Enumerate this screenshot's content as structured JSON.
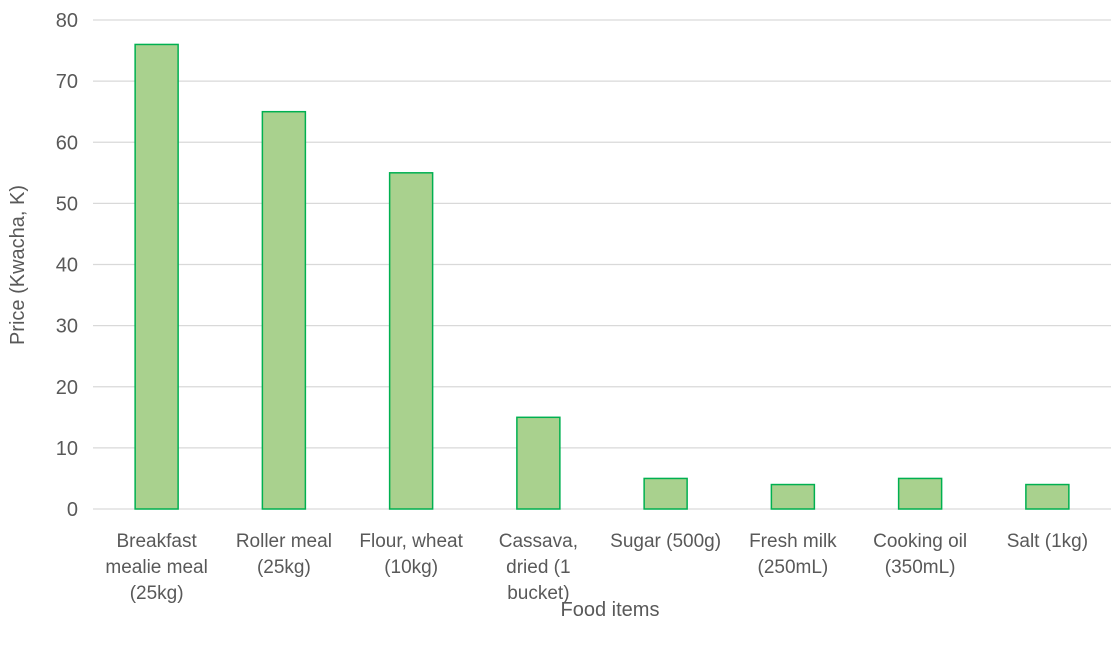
{
  "chart_data": {
    "type": "bar",
    "title": "",
    "xlabel": "Food items",
    "ylabel": "Price (Kwacha, K)",
    "ylim": [
      0,
      80
    ],
    "yticks": [
      0,
      10,
      20,
      30,
      40,
      50,
      60,
      70,
      80
    ],
    "grid": true,
    "legend": "none",
    "categories": [
      [
        "Breakfast",
        "mealie meal",
        "(25kg)"
      ],
      [
        "Roller meal",
        "(25kg)"
      ],
      [
        "Flour, wheat",
        "(10kg)"
      ],
      [
        "Cassava,",
        "dried (1",
        "bucket)"
      ],
      [
        "Sugar (500g)"
      ],
      [
        "Fresh milk",
        "(250mL)"
      ],
      [
        "Cooking oil",
        "(350mL)"
      ],
      [
        "Salt (1kg)"
      ]
    ],
    "values": [
      76,
      65,
      55,
      15,
      5,
      4,
      5,
      4
    ],
    "colors": {
      "bar_fill": "#a9d18e",
      "bar_stroke": "#00b050",
      "grid": "#d9d9d9",
      "text": "#595959"
    }
  }
}
